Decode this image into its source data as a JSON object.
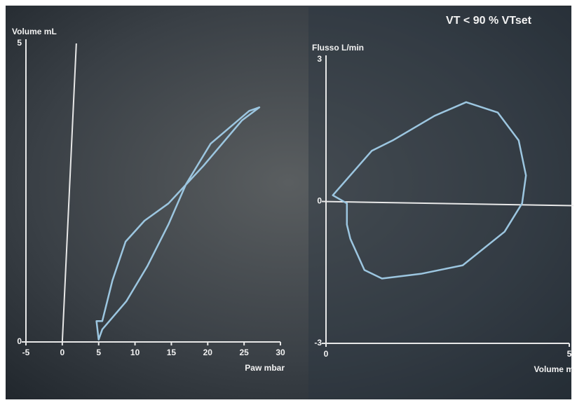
{
  "chart_data": [
    {
      "type": "line",
      "x_label": "Paw mbar",
      "y_label": "Volume mL",
      "xlim": [
        -5,
        30
      ],
      "xticks": [
        -5,
        0,
        5,
        10,
        15,
        20,
        25,
        30
      ],
      "ylim": [
        0,
        5
      ],
      "yticks": [
        0,
        5
      ],
      "series": [
        {
          "color": "#9cc6e0",
          "x": [
            5.0,
            4.7,
            5.5,
            6.9,
            8.7,
            11.3,
            14.6,
            19.4,
            24.7,
            27.1,
            25.7,
            20.4,
            17.0,
            14.6,
            11.7,
            8.8,
            5.5
          ],
          "values": [
            0.04,
            0.35,
            0.35,
            1.03,
            1.68,
            2.03,
            2.32,
            2.95,
            3.71,
            3.93,
            3.87,
            3.32,
            2.64,
            1.97,
            1.27,
            0.68,
            0.21
          ]
        }
      ]
    },
    {
      "type": "line",
      "x_label": "Volume m",
      "y_label": "Flusso L/min",
      "annotation": "VT < 90 % VTset",
      "xlim": [
        0,
        5
      ],
      "xticks": [
        0,
        5
      ],
      "ylim": [
        -3,
        3
      ],
      "yticks": [
        -3,
        0,
        3
      ],
      "series": [
        {
          "color": "#9cc6e0",
          "x": [
            0.14,
            0.94,
            1.37,
            2.23,
            2.88,
            3.53,
            3.96,
            4.11,
            4.03,
            3.67,
            2.81,
            1.95,
            1.15,
            0.79,
            0.5,
            0.43,
            0.43
          ],
          "values": [
            0.13,
            1.07,
            1.29,
            1.81,
            2.1,
            1.88,
            1.29,
            0.55,
            -0.04,
            -0.64,
            -1.35,
            -1.53,
            -1.63,
            -1.45,
            -0.79,
            -0.49,
            -0.04
          ]
        }
      ]
    }
  ]
}
